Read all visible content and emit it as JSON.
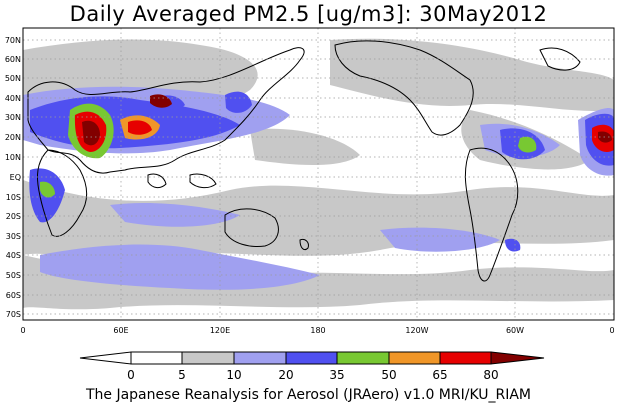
{
  "title": "Daily Averaged PM2.5 [ug/m3]: 30May2012",
  "footer": "The Japanese Reanalysis for Aerosol (JRAero) v1.0 MRI/KU_RIAM",
  "map": {
    "lat_labels": [
      "70N",
      "60N",
      "50N",
      "40N",
      "30N",
      "20N",
      "10N",
      "EQ",
      "10S",
      "20S",
      "30S",
      "40S",
      "50S",
      "60S",
      "70S"
    ],
    "lon_labels": [
      "0",
      "60E",
      "120E",
      "180",
      "120W",
      "60W",
      "0"
    ],
    "land_color": "#000000",
    "grid_color": "#9a9a9a"
  },
  "colorbar": {
    "levels": [
      "0",
      "5",
      "10",
      "20",
      "35",
      "50",
      "65",
      "80"
    ],
    "colors": [
      "#ffffff",
      "#c8c8c8",
      "#a0a0f0",
      "#5050f0",
      "#78c832",
      "#f09628",
      "#e60000",
      "#820000"
    ]
  },
  "fields": {
    "gray": "#c8c8c8",
    "light_blue": "#a0a0f0",
    "blue": "#5050f0",
    "green": "#78c832",
    "orange": "#f09628",
    "red": "#e60000",
    "dark_red": "#820000"
  }
}
